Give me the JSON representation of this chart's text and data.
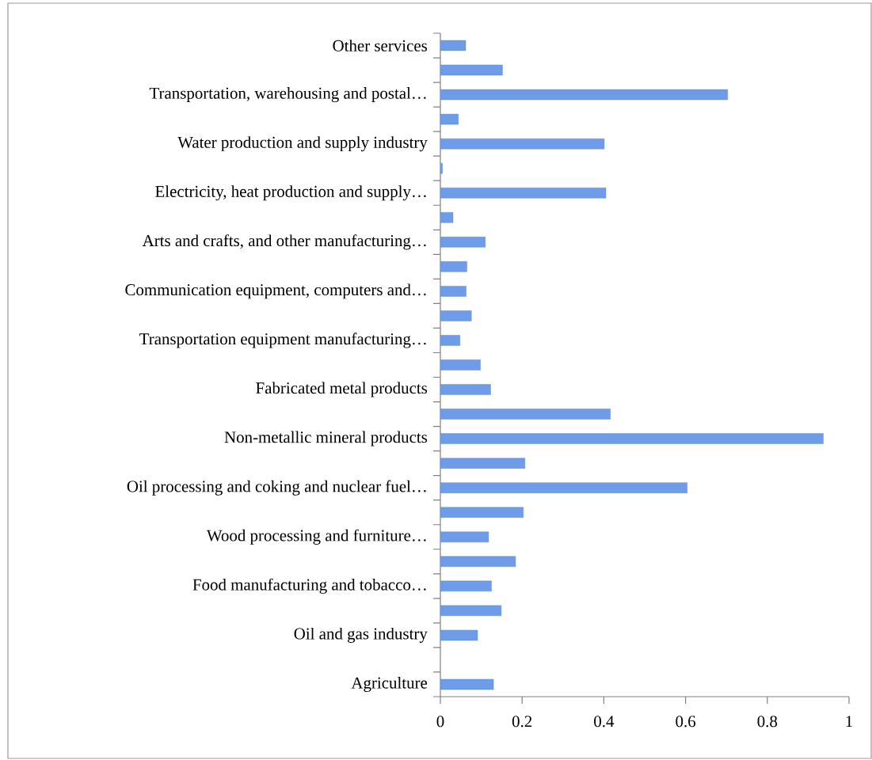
{
  "chart_data": {
    "type": "bar",
    "orientation": "horizontal",
    "categories": [
      "Other services",
      null,
      "Transportation, warehousing and postal…",
      null,
      "Water production and supply industry",
      null,
      "Electricity, heat production and supply…",
      null,
      "Arts and crafts, and other manufacturing…",
      null,
      "Communication equipment, computers and…",
      null,
      "Transportation equipment manufacturing…",
      null,
      "Fabricated metal products",
      null,
      "Non-metallic mineral products",
      null,
      "Oil processing and coking and nuclear fuel…",
      null,
      "Wood processing and furniture…",
      null,
      "Food manufacturing and tobacco…",
      null,
      "Oil and gas industry",
      null,
      "Agriculture"
    ],
    "values": [
      0.062,
      0.152,
      0.703,
      0.044,
      0.401,
      0.005,
      0.405,
      0.031,
      0.11,
      0.065,
      0.063,
      0.076,
      0.048,
      0.098,
      0.123,
      0.416,
      0.937,
      0.207,
      0.604,
      0.203,
      0.118,
      0.184,
      0.125,
      0.149,
      0.091,
      null,
      0.13
    ],
    "color": "#6f9ce8",
    "xlim": [
      0,
      1
    ],
    "xticks": [
      0,
      0.2,
      0.4,
      0.6,
      0.8,
      1
    ]
  }
}
